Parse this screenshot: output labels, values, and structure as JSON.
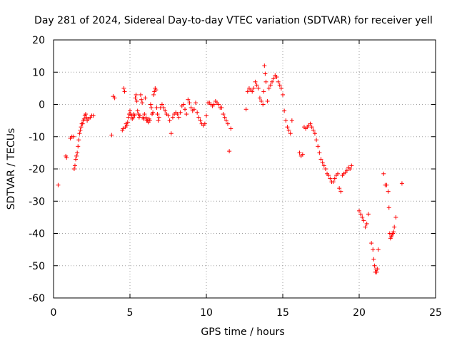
{
  "chart_data": {
    "type": "scatter",
    "title": "Day 281 of 2024, Sidereal Day-to-day VTEC variation (SDTVAR) for receiver yell",
    "xlabel": "GPS time / hours",
    "ylabel": "SDTVAR / TECUs",
    "xlim": [
      0,
      25
    ],
    "ylim": [
      -60,
      20
    ],
    "xticks": [
      0,
      5,
      10,
      15,
      20,
      25
    ],
    "yticks": [
      -60,
      -50,
      -40,
      -30,
      -20,
      -10,
      0,
      10,
      20
    ],
    "grid": true,
    "marker": "+",
    "color": "#ff0000",
    "series": [
      {
        "name": "SDTVAR",
        "x": [
          0.3,
          0.8,
          0.85,
          1.1,
          1.2,
          1.3,
          1.35,
          1.4,
          1.45,
          1.5,
          1.55,
          1.6,
          1.65,
          1.7,
          1.75,
          1.8,
          1.85,
          1.9,
          1.95,
          2.0,
          2.05,
          2.1,
          2.15,
          2.2,
          2.3,
          2.4,
          2.5,
          2.6,
          3.8,
          3.9,
          4.0,
          4.5,
          4.55,
          4.6,
          4.65,
          4.7,
          4.75,
          4.8,
          4.85,
          4.9,
          4.95,
          5.0,
          5.05,
          5.1,
          5.15,
          5.2,
          5.25,
          5.3,
          5.35,
          5.4,
          5.45,
          5.5,
          5.55,
          5.6,
          5.65,
          5.7,
          5.75,
          5.8,
          5.85,
          5.9,
          5.95,
          6.0,
          6.05,
          6.1,
          6.15,
          6.2,
          6.25,
          6.3,
          6.35,
          6.4,
          6.45,
          6.5,
          6.55,
          6.6,
          6.65,
          6.7,
          6.75,
          6.8,
          6.85,
          6.9,
          7.0,
          7.1,
          7.2,
          7.3,
          7.4,
          7.5,
          7.6,
          7.7,
          7.8,
          7.9,
          8.0,
          8.1,
          8.2,
          8.3,
          8.4,
          8.5,
          8.6,
          8.7,
          8.8,
          8.9,
          9.0,
          9.1,
          9.2,
          9.3,
          9.4,
          9.5,
          9.6,
          9.7,
          9.8,
          9.9,
          10.0,
          10.1,
          10.2,
          10.3,
          10.4,
          10.5,
          10.6,
          10.7,
          10.8,
          10.9,
          11.0,
          11.1,
          11.2,
          11.3,
          11.4,
          11.5,
          11.6,
          12.6,
          12.7,
          12.8,
          12.9,
          13.0,
          13.1,
          13.2,
          13.3,
          13.4,
          13.5,
          13.6,
          13.7,
          13.75,
          13.8,
          13.85,
          13.9,
          14.0,
          14.1,
          14.2,
          14.3,
          14.4,
          14.5,
          14.6,
          14.7,
          14.8,
          14.9,
          15.0,
          15.1,
          15.2,
          15.3,
          15.4,
          15.5,
          15.6,
          16.1,
          16.2,
          16.3,
          16.4,
          16.5,
          16.6,
          16.7,
          16.8,
          16.9,
          17.0,
          17.1,
          17.2,
          17.3,
          17.4,
          17.5,
          17.6,
          17.7,
          17.8,
          17.9,
          18.0,
          18.1,
          18.2,
          18.3,
          18.4,
          18.5,
          18.6,
          18.7,
          18.8,
          18.9,
          19.0,
          19.1,
          19.2,
          19.3,
          19.4,
          19.5,
          20.0,
          20.1,
          20.2,
          20.3,
          20.4,
          20.5,
          20.6,
          20.8,
          20.9,
          20.95,
          21.0,
          21.05,
          21.1,
          21.15,
          21.2,
          21.25,
          21.6,
          21.7,
          21.8,
          21.9,
          21.95,
          22.0,
          22.05,
          22.1,
          22.15,
          22.2,
          22.25,
          22.3,
          22.4,
          22.8
        ],
        "y": [
          -25,
          -16,
          -16.5,
          -10.5,
          -10,
          -10,
          -20,
          -19,
          -17,
          -16,
          -15,
          -13,
          -11,
          -9,
          -8,
          -7,
          -6,
          -6,
          -5,
          -4.5,
          -3.5,
          -3,
          -4,
          -5,
          -4.5,
          -4,
          -3.5,
          -3.5,
          -9.5,
          2.5,
          2,
          -8,
          -7.5,
          5,
          4,
          -7,
          -6,
          -6.5,
          -5.5,
          -4,
          -3,
          -2,
          -3,
          -3.5,
          -4.5,
          -4,
          -3,
          -3.5,
          2,
          3,
          1,
          -2,
          -3,
          -4,
          -3.5,
          3,
          1.5,
          0.5,
          -4,
          -4.5,
          -3,
          2,
          -4,
          -5,
          -5,
          -5.5,
          -4.5,
          -5,
          0,
          -1,
          -3,
          -2.5,
          3,
          4,
          5,
          4.5,
          -1,
          -3,
          -5,
          -4,
          -1,
          0,
          -1,
          -2,
          -3,
          -3.5,
          -5,
          -9,
          -4,
          -3,
          -2.5,
          -3,
          -4,
          -2.5,
          -0.5,
          0,
          -1.5,
          -3,
          1.5,
          0.5,
          -1,
          -2,
          -1.5,
          0.5,
          -2.5,
          -4,
          -5,
          -6,
          -6.5,
          -6,
          -3.5,
          0.5,
          0.5,
          0,
          -0.5,
          0,
          1,
          0.5,
          0,
          -1,
          -1,
          -3,
          -4,
          -5,
          -6,
          -14.5,
          -7.5,
          -1.5,
          4,
          5,
          4.5,
          4,
          5,
          7,
          6,
          5,
          2,
          1,
          0,
          4,
          12,
          9.5,
          7,
          1,
          5,
          6,
          7,
          8,
          9,
          8.5,
          7,
          6,
          5,
          3,
          -2,
          -5,
          -7,
          -8,
          -9,
          -5,
          -15,
          -16,
          -15.5,
          -7,
          -7.5,
          -7,
          -6.5,
          -6,
          -7,
          -8,
          -9,
          -11,
          -13,
          -15,
          -17,
          -18,
          -19,
          -20,
          -21.5,
          -22,
          -23,
          -24,
          -24,
          -23,
          -22,
          -21.5,
          -26,
          -27,
          -22,
          -21.5,
          -21,
          -20.5,
          -19.5,
          -20,
          -19,
          -33,
          -34,
          -35,
          -36,
          -38,
          -37,
          -34,
          -43,
          -45,
          -48,
          -50,
          -52,
          -51,
          -52,
          -51,
          -45,
          -21.5,
          -25,
          -25,
          -27,
          -32,
          -40,
          -41.5,
          -41,
          -40.5,
          -40,
          -39.5,
          -38,
          -35,
          -24.5
        ]
      }
    ]
  }
}
